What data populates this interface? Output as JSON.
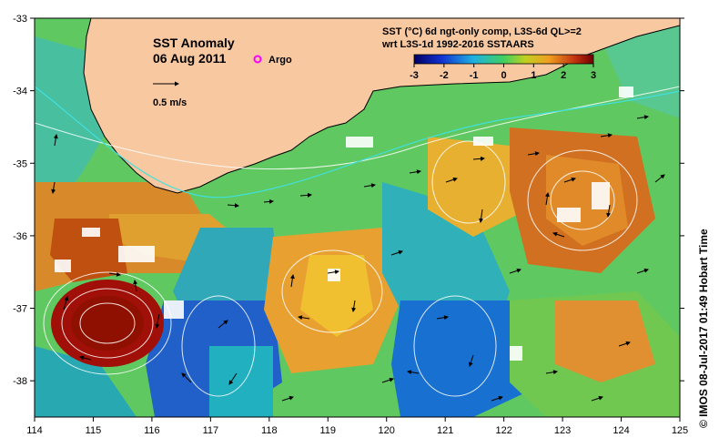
{
  "map": {
    "title": "SST Anomaly",
    "date": "06 Aug 2011",
    "argo_label": "Argo",
    "scale_label": "0.5 m/s",
    "product_line1": "SST (°C) 6d ngt-only comp, L3S-6d QL>=2",
    "product_line2": "wrt L3S-1d 1992-2016 SSTAARS",
    "colorbar_ticks": [
      "-3",
      "-2",
      "-1",
      "0",
      "1",
      "2",
      "3"
    ],
    "colorbar_range": [
      -3,
      3
    ],
    "lon_ticks": [
      "114",
      "115",
      "116",
      "117",
      "118",
      "119",
      "120",
      "121",
      "122",
      "123",
      "124",
      "125"
    ],
    "lat_ticks": [
      "-33",
      "-34",
      "-35",
      "-36",
      "-37",
      "-38"
    ],
    "lon_range": [
      114,
      125
    ],
    "lat_range": [
      -38.5,
      -33
    ],
    "side_caption": "© IMOS 08-Jul-2017 01:49 Hobart Time",
    "colors": {
      "land": "#f8c8a0",
      "strong_positive": "#a01000",
      "positive": "#e08020",
      "warm": "#f0c020",
      "neutral": "#60d060",
      "cool": "#20b0b0",
      "negative": "#1050d0",
      "argo": "#ff00ff"
    }
  }
}
